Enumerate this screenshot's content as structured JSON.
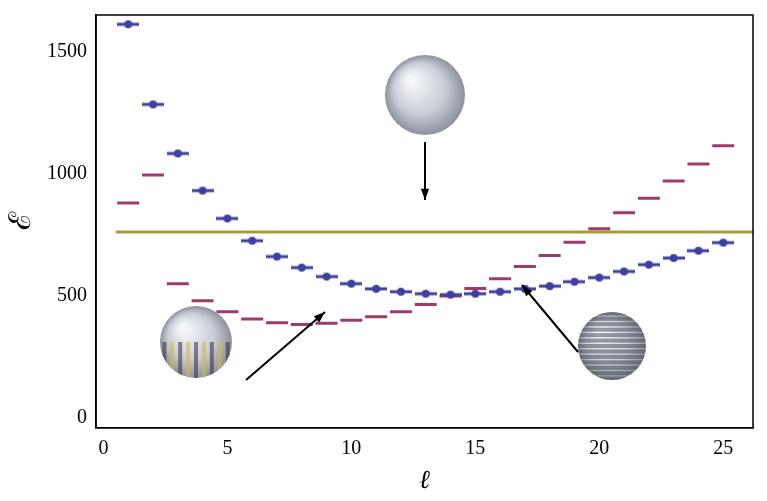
{
  "chart_data": {
    "type": "scatter",
    "xlabel": "ℓ",
    "ylabel": "ℰ",
    "xlim": [
      -0.3,
      26.2
    ],
    "ylim": [
      -40,
      1650
    ],
    "xticks": [
      0,
      5,
      10,
      15,
      20,
      25
    ],
    "yticks": [
      0,
      500,
      1000,
      1500
    ],
    "grid": false,
    "series": [
      {
        "type": "scatter",
        "color": "#3f3f9f",
        "marker": "dash_dot",
        "x": [
          1,
          2,
          3,
          4,
          5,
          6,
          7,
          8,
          9,
          10,
          11,
          12,
          13,
          14,
          15,
          16,
          17,
          18,
          19,
          20,
          21,
          22,
          23,
          24,
          25
        ],
        "values": [
          1612,
          1284,
          1083,
          931,
          817,
          726,
          661,
          616,
          579,
          550,
          529,
          517,
          509,
          505,
          509,
          517,
          529,
          540,
          558,
          575,
          600,
          628,
          655,
          685,
          718
        ]
      },
      {
        "type": "scatter",
        "color": "#a03a6a",
        "marker": "dash",
        "x": [
          1,
          2,
          3,
          4,
          5,
          6,
          7,
          8,
          9,
          10,
          11,
          12,
          13,
          14,
          15,
          16,
          17,
          18,
          19,
          20,
          21,
          22,
          23,
          24,
          25
        ],
        "values": [
          880,
          995,
          550,
          480,
          435,
          405,
          390,
          383,
          388,
          400,
          415,
          435,
          465,
          500,
          530,
          570,
          620,
          665,
          720,
          775,
          840,
          900,
          970,
          1040,
          1115
        ]
      },
      {
        "type": "line",
        "color": "#a89b3c",
        "line_style": "solid",
        "marker": "none",
        "x": [
          0.5,
          26.2
        ],
        "values": [
          762,
          762
        ]
      }
    ]
  }
}
